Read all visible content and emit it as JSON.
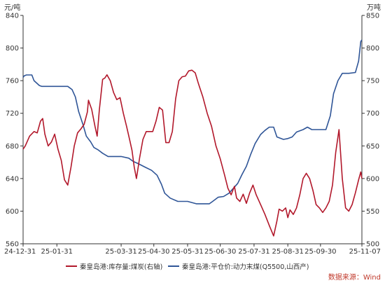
{
  "chart_data": {
    "type": "line",
    "left_unit": "元/吨",
    "right_unit": "万吨",
    "source": "数据来源：Wind",
    "x_dates": [
      "24-12-31",
      "25-01-31",
      "25-03-31",
      "25-04-30",
      "25-05-31",
      "25-06-30",
      "25-07-31",
      "25-08-31",
      "25-09-30",
      "25-11-07"
    ],
    "left_axis": {
      "min": 560,
      "max": 840,
      "step": 40
    },
    "right_axis": {
      "min": 500,
      "max": 850,
      "step": 50
    },
    "series": [
      {
        "name": "秦皇岛港:平仓价:动力末煤(Q5500,山西产)",
        "axis": "left",
        "color": "#2f5597",
        "points": [
          [
            "24-12-31",
            764
          ],
          [
            "25-01-01",
            766
          ],
          [
            "25-01-03",
            767
          ],
          [
            "25-01-08",
            767
          ],
          [
            "25-01-10",
            760
          ],
          [
            "25-01-15",
            754
          ],
          [
            "25-01-17",
            753
          ],
          [
            "25-01-22",
            753
          ],
          [
            "25-01-31",
            753
          ],
          [
            "25-02-10",
            753
          ],
          [
            "25-02-14",
            749
          ],
          [
            "25-02-17",
            740
          ],
          [
            "25-02-20",
            722
          ],
          [
            "25-02-24",
            706
          ],
          [
            "25-02-27",
            692
          ],
          [
            "25-03-03",
            685
          ],
          [
            "25-03-06",
            678
          ],
          [
            "25-03-10",
            675
          ],
          [
            "25-03-14",
            671
          ],
          [
            "25-03-19",
            667
          ],
          [
            "25-03-25",
            667
          ],
          [
            "25-03-31",
            667
          ],
          [
            "25-04-07",
            665
          ],
          [
            "25-04-11",
            661
          ],
          [
            "25-04-16",
            658
          ],
          [
            "25-04-22",
            654
          ],
          [
            "25-04-28",
            650
          ],
          [
            "25-05-03",
            644
          ],
          [
            "25-05-07",
            633
          ],
          [
            "25-05-10",
            622
          ],
          [
            "25-05-15",
            616
          ],
          [
            "25-05-22",
            612
          ],
          [
            "25-05-31",
            612
          ],
          [
            "25-06-08",
            609
          ],
          [
            "25-06-14",
            609
          ],
          [
            "25-06-20",
            609
          ],
          [
            "25-06-23",
            612
          ],
          [
            "25-06-28",
            617
          ],
          [
            "25-07-03",
            618
          ],
          [
            "25-07-08",
            622
          ],
          [
            "25-07-12",
            628
          ],
          [
            "25-07-16",
            634
          ],
          [
            "25-07-20",
            645
          ],
          [
            "25-07-24",
            655
          ],
          [
            "25-07-28",
            670
          ],
          [
            "25-08-01",
            683
          ],
          [
            "25-08-06",
            694
          ],
          [
            "25-08-10",
            699
          ],
          [
            "25-08-14",
            703
          ],
          [
            "25-08-18",
            703
          ],
          [
            "25-08-21",
            691
          ],
          [
            "25-08-27",
            688
          ],
          [
            "25-08-31",
            689
          ],
          [
            "25-09-04",
            691
          ],
          [
            "25-09-08",
            697
          ],
          [
            "25-09-14",
            700
          ],
          [
            "25-09-18",
            703
          ],
          [
            "25-09-22",
            700
          ],
          [
            "25-09-30",
            700
          ],
          [
            "25-10-05",
            700
          ],
          [
            "25-10-09",
            717
          ],
          [
            "25-10-12",
            744
          ],
          [
            "25-10-16",
            760
          ],
          [
            "25-10-20",
            769
          ],
          [
            "25-10-26",
            769
          ],
          [
            "25-11-01",
            770
          ],
          [
            "25-11-04",
            784
          ],
          [
            "25-11-06",
            808
          ],
          [
            "25-11-07",
            810
          ]
        ]
      },
      {
        "name": "秦皇岛港:库存量:煤炭(右轴)",
        "axis": "right",
        "color": "#b2182b",
        "points": [
          [
            "24-12-31",
            645
          ],
          [
            "25-01-02",
            650
          ],
          [
            "25-01-06",
            665
          ],
          [
            "25-01-10",
            672
          ],
          [
            "25-01-13",
            670
          ],
          [
            "25-01-16",
            688
          ],
          [
            "25-01-18",
            692
          ],
          [
            "25-01-20",
            668
          ],
          [
            "25-01-23",
            650
          ],
          [
            "25-01-26",
            656
          ],
          [
            "25-01-29",
            668
          ],
          [
            "25-02-01",
            645
          ],
          [
            "25-02-04",
            628
          ],
          [
            "25-02-07",
            598
          ],
          [
            "25-02-10",
            590
          ],
          [
            "25-02-13",
            618
          ],
          [
            "25-02-16",
            650
          ],
          [
            "25-02-19",
            670
          ],
          [
            "25-02-22",
            676
          ],
          [
            "25-02-25",
            683
          ],
          [
            "25-02-28",
            702
          ],
          [
            "25-03-01",
            720
          ],
          [
            "25-03-04",
            706
          ],
          [
            "25-03-07",
            680
          ],
          [
            "25-03-09",
            665
          ],
          [
            "25-03-11",
            705
          ],
          [
            "25-03-14",
            752
          ],
          [
            "25-03-16",
            754
          ],
          [
            "25-03-18",
            759
          ],
          [
            "25-03-21",
            750
          ],
          [
            "25-03-24",
            732
          ],
          [
            "25-03-27",
            721
          ],
          [
            "25-03-30",
            724
          ],
          [
            "25-04-02",
            700
          ],
          [
            "25-04-05",
            680
          ],
          [
            "25-04-08",
            658
          ],
          [
            "25-04-10",
            643
          ],
          [
            "25-04-12",
            618
          ],
          [
            "25-04-14",
            600
          ],
          [
            "25-04-17",
            632
          ],
          [
            "25-04-20",
            660
          ],
          [
            "25-04-23",
            672
          ],
          [
            "25-04-26",
            672
          ],
          [
            "25-04-29",
            672
          ],
          [
            "25-05-02",
            688
          ],
          [
            "25-05-05",
            709
          ],
          [
            "25-05-08",
            705
          ],
          [
            "25-05-11",
            655
          ],
          [
            "25-05-14",
            655
          ],
          [
            "25-05-17",
            672
          ],
          [
            "25-05-20",
            722
          ],
          [
            "25-05-23",
            750
          ],
          [
            "25-05-26",
            756
          ],
          [
            "25-05-29",
            757
          ],
          [
            "25-06-01",
            765
          ],
          [
            "25-06-04",
            766
          ],
          [
            "25-06-07",
            762
          ],
          [
            "25-06-10",
            745
          ],
          [
            "25-06-14",
            725
          ],
          [
            "25-06-18",
            700
          ],
          [
            "25-06-22",
            680
          ],
          [
            "25-06-26",
            650
          ],
          [
            "25-06-30",
            630
          ],
          [
            "25-07-04",
            605
          ],
          [
            "25-07-07",
            585
          ],
          [
            "25-07-10",
            575
          ],
          [
            "25-07-13",
            588
          ],
          [
            "25-07-15",
            570
          ],
          [
            "25-07-18",
            565
          ],
          [
            "25-07-21",
            576
          ],
          [
            "25-07-24",
            562
          ],
          [
            "25-07-27",
            578
          ],
          [
            "25-07-30",
            590
          ],
          [
            "25-08-02",
            575
          ],
          [
            "25-08-06",
            560
          ],
          [
            "25-08-10",
            545
          ],
          [
            "25-08-14",
            528
          ],
          [
            "25-08-18",
            512
          ],
          [
            "25-08-21",
            535
          ],
          [
            "25-08-23",
            553
          ],
          [
            "25-08-26",
            550
          ],
          [
            "25-08-29",
            555
          ],
          [
            "25-08-31",
            540
          ],
          [
            "25-09-02",
            552
          ],
          [
            "25-09-05",
            545
          ],
          [
            "25-09-08",
            555
          ],
          [
            "25-09-11",
            575
          ],
          [
            "25-09-14",
            600
          ],
          [
            "25-09-17",
            608
          ],
          [
            "25-09-20",
            600
          ],
          [
            "25-09-23",
            582
          ],
          [
            "25-09-26",
            560
          ],
          [
            "25-09-29",
            555
          ],
          [
            "25-10-02",
            548
          ],
          [
            "25-10-05",
            555
          ],
          [
            "25-10-08",
            565
          ],
          [
            "25-10-11",
            590
          ],
          [
            "25-10-14",
            640
          ],
          [
            "25-10-17",
            675
          ],
          [
            "25-10-20",
            600
          ],
          [
            "25-10-23",
            555
          ],
          [
            "25-10-26",
            550
          ],
          [
            "25-10-29",
            560
          ],
          [
            "25-11-01",
            578
          ],
          [
            "25-11-04",
            598
          ],
          [
            "25-11-06",
            610
          ],
          [
            "25-11-07",
            600
          ]
        ]
      }
    ],
    "legend_position": "bottom",
    "grid": false
  }
}
